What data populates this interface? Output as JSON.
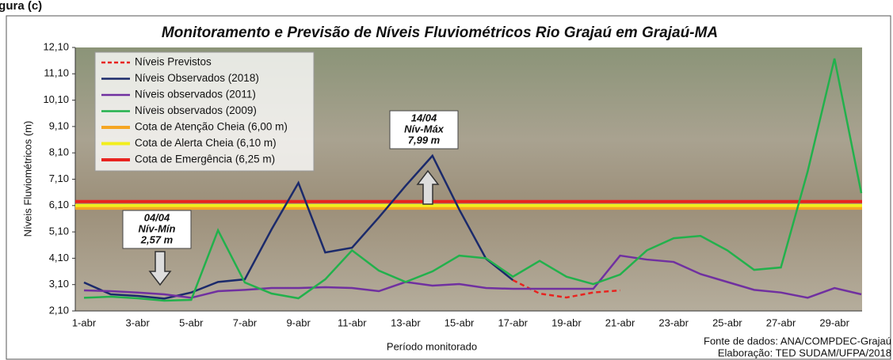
{
  "figure_label": "igura (c)",
  "chart_data": {
    "type": "line",
    "title": "Monitoramento e Previsão de Níveis Fluviométricos Rio Grajaú em Grajaú-MA",
    "x_label": "Período monitorado",
    "y_label": "Níveis Fluviométricos (m)",
    "categories": [
      "1-abr",
      null,
      "3-abr",
      null,
      "5-abr",
      null,
      "7-abr",
      null,
      "9-abr",
      null,
      "11-abr",
      null,
      "13-abr",
      null,
      "15-abr",
      null,
      "17-abr",
      null,
      "19-abr",
      null,
      "21-abr",
      null,
      "23-abr",
      null,
      "25-abr",
      null,
      "27-abr",
      null,
      "29-abr",
      null
    ],
    "ylim": [
      2.1,
      12.1
    ],
    "yticks": [
      {
        "value": 2.1,
        "label": "2,10"
      },
      {
        "value": 3.1,
        "label": "3,10"
      },
      {
        "value": 4.1,
        "label": "4,10"
      },
      {
        "value": 5.1,
        "label": "5,10"
      },
      {
        "value": 6.1,
        "label": "6,10"
      },
      {
        "value": 7.1,
        "label": "7,10"
      },
      {
        "value": 8.1,
        "label": "8,10"
      },
      {
        "value": 9.1,
        "label": "9,10"
      },
      {
        "value": 10.1,
        "label": "10,10"
      },
      {
        "value": 11.1,
        "label": "11,10"
      },
      {
        "value": 12.1,
        "label": "12,10"
      }
    ],
    "grid": false,
    "series": [
      {
        "name": "Níveis Previstos",
        "color": "#e8231f",
        "style": "dashed",
        "values": [
          null,
          null,
          null,
          null,
          null,
          null,
          null,
          null,
          null,
          null,
          null,
          null,
          null,
          null,
          null,
          null,
          3.27,
          2.76,
          2.61,
          2.8,
          2.88,
          null,
          null,
          null,
          null,
          null,
          null,
          null,
          null,
          null
        ]
      },
      {
        "name": "Níveis Observados (2018)",
        "color": "#1b2a6b",
        "style": "solid",
        "values": [
          3.18,
          2.73,
          2.67,
          2.57,
          2.8,
          3.2,
          3.3,
          5.2,
          6.96,
          4.32,
          4.5,
          5.65,
          6.85,
          7.99,
          5.95,
          4.08,
          3.27,
          null,
          null,
          null,
          null,
          null,
          null,
          null,
          null,
          null,
          null,
          null,
          null,
          null
        ]
      },
      {
        "name": "Níveis observados (2011)",
        "color": "#7030a0",
        "style": "solid",
        "values": [
          2.88,
          2.85,
          2.8,
          2.73,
          2.6,
          2.85,
          2.9,
          2.97,
          2.97,
          3.0,
          2.97,
          2.85,
          3.2,
          3.06,
          3.12,
          2.97,
          2.94,
          2.94,
          2.94,
          2.94,
          4.2,
          4.05,
          3.96,
          3.5,
          3.2,
          2.9,
          2.8,
          2.6,
          2.97,
          2.73
        ]
      },
      {
        "name": "Níveis observados (2009)",
        "color": "#22b14c",
        "style": "solid",
        "values": [
          2.6,
          2.64,
          2.58,
          2.49,
          2.52,
          5.16,
          3.18,
          2.76,
          2.58,
          3.3,
          4.4,
          3.63,
          3.2,
          3.6,
          4.2,
          4.1,
          3.4,
          4.0,
          3.4,
          3.12,
          3.48,
          4.4,
          4.86,
          4.95,
          4.4,
          3.66,
          3.75,
          7.4,
          11.68,
          6.57
        ]
      }
    ],
    "reference_lines": [
      {
        "name": "Cota de Atenção Cheia (6,00 m)",
        "value": 6.0,
        "color": "#f5a623"
      },
      {
        "name": "Cota de Alerta Cheia (6,10 m)",
        "value": 6.1,
        "color": "#f2ee1d"
      },
      {
        "name": "Cota de Emergência (6,25 m)",
        "value": 6.25,
        "color": "#e8231f"
      }
    ],
    "annotations": [
      {
        "date": "04/04",
        "label": "Nív-Mín",
        "level": "2,57 m"
      },
      {
        "date": "14/04",
        "label": "Nív-Máx",
        "level": "7,99 m"
      }
    ],
    "source": [
      "Fonte de dados: ANA/COMPDEC-Grajaú",
      "Elaboração: TED SUDAM/UFPA/2018"
    ]
  }
}
